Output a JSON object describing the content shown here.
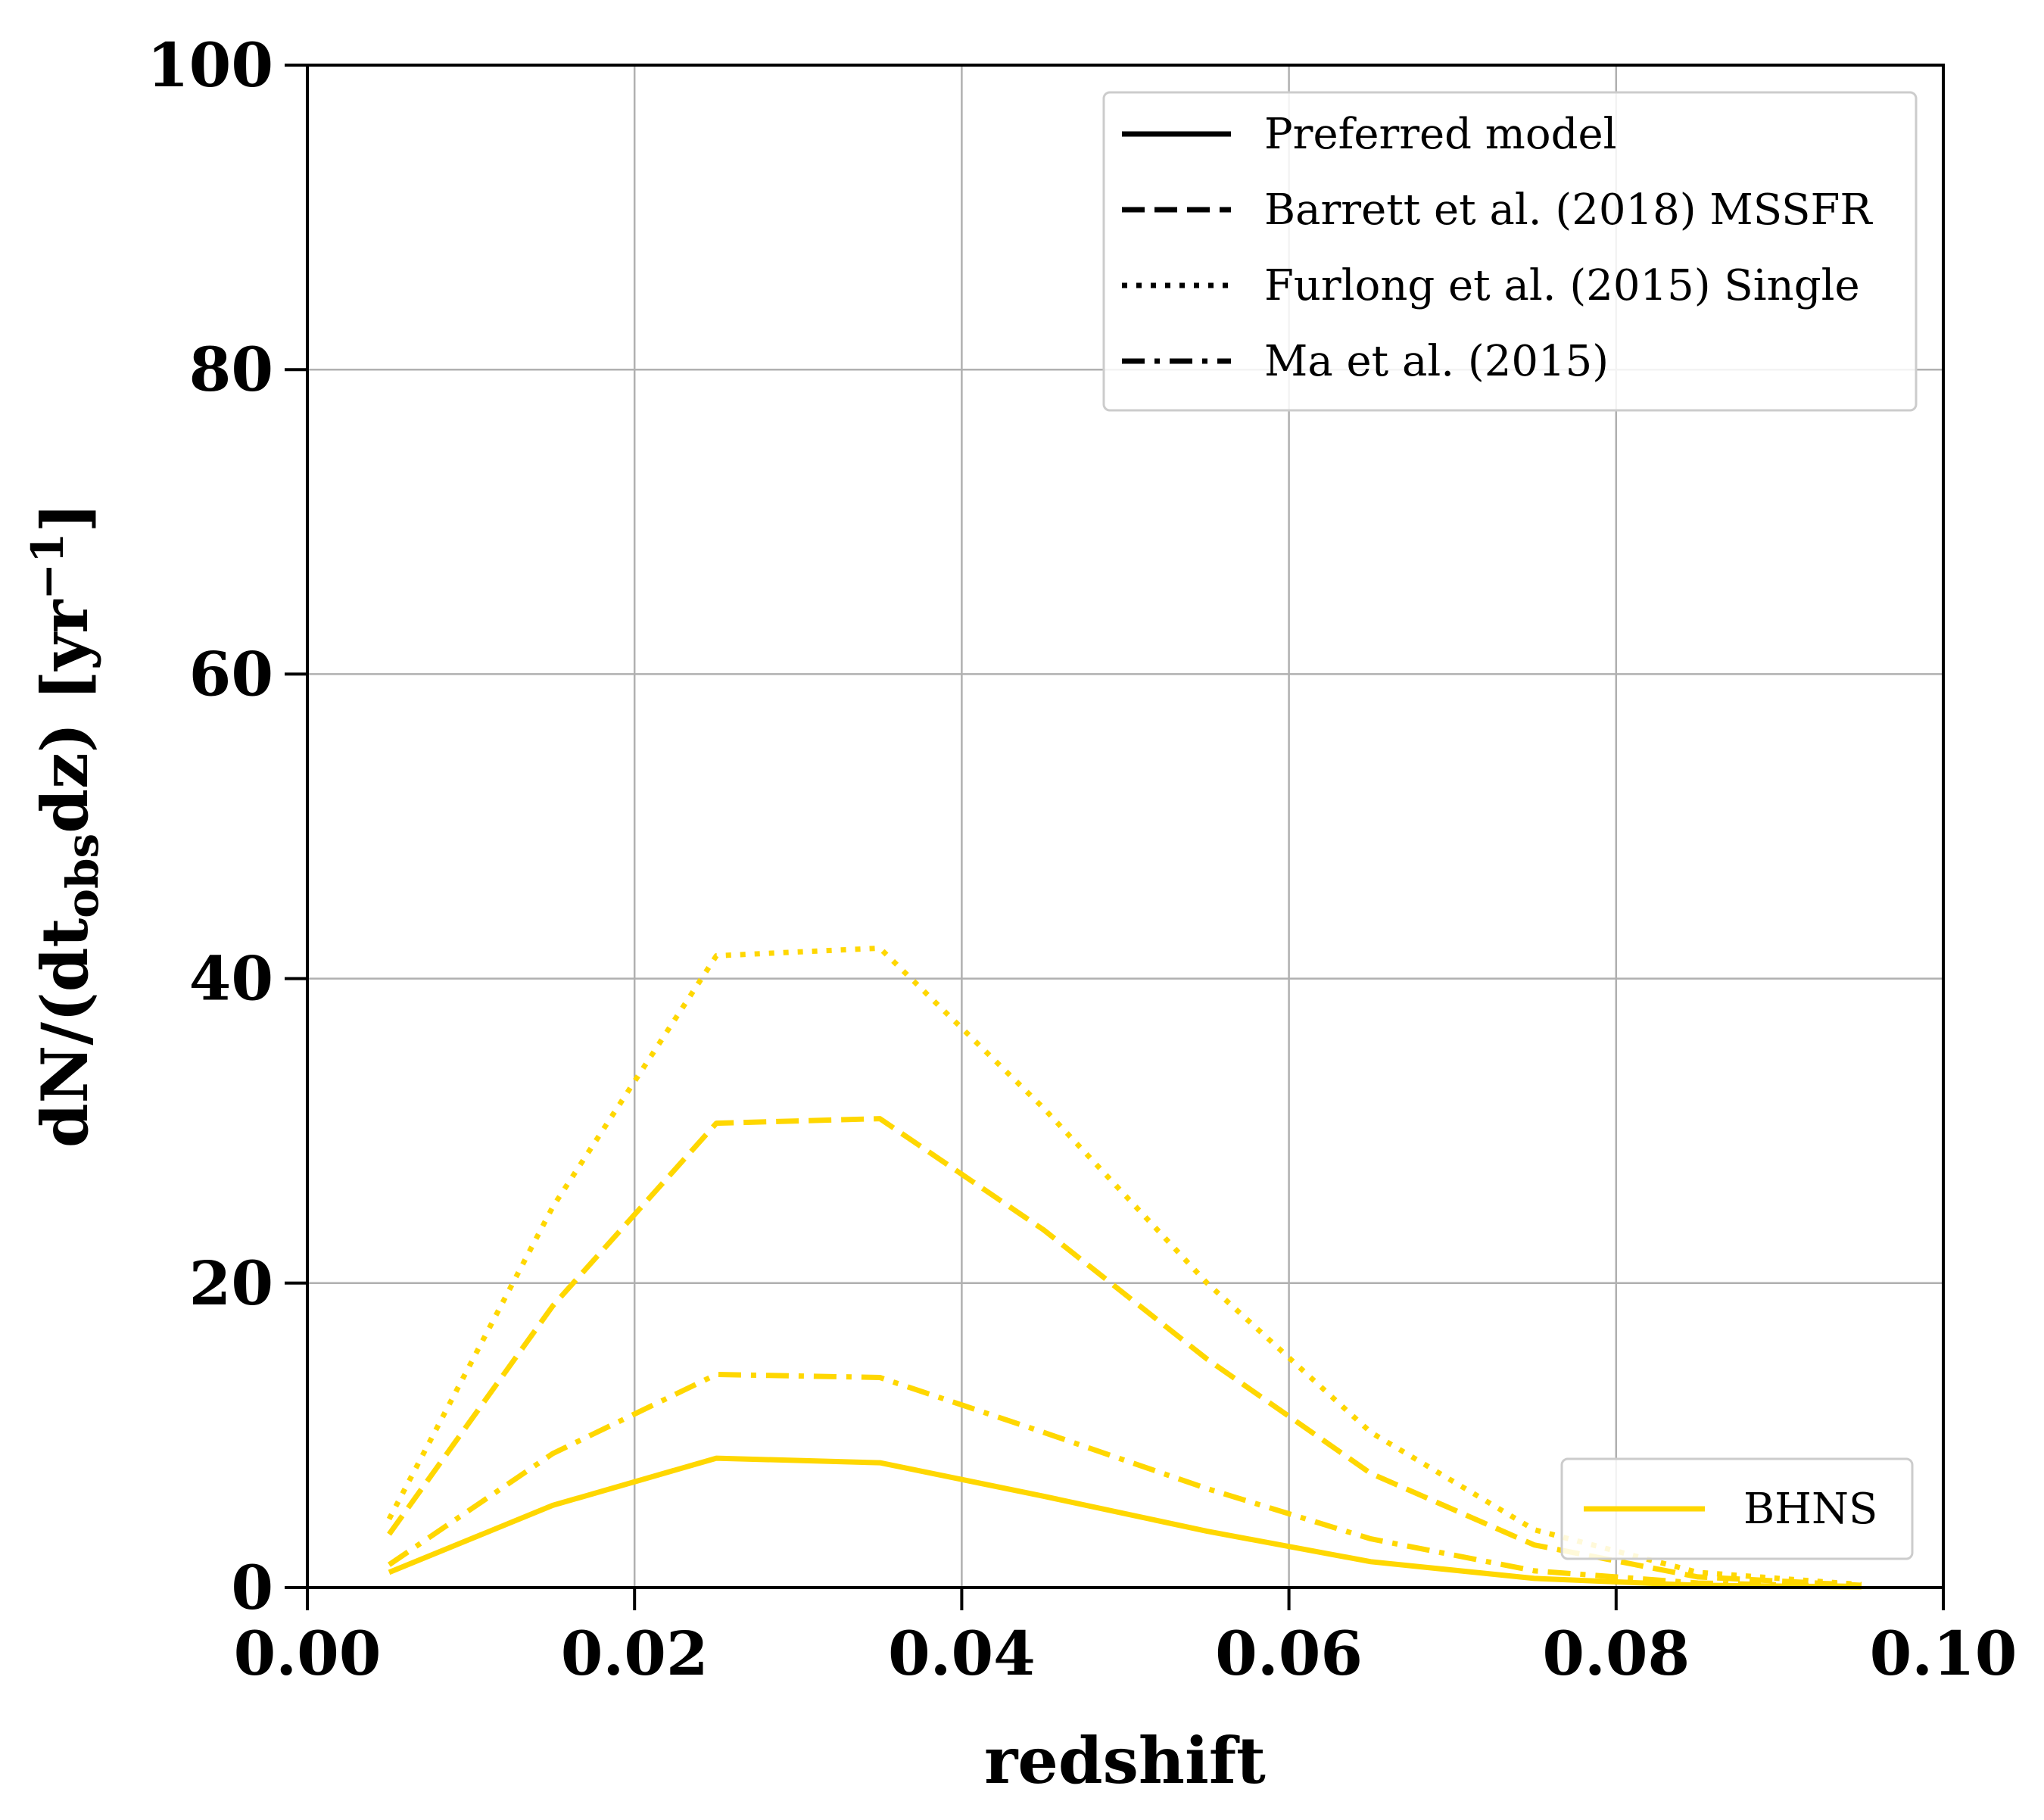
{
  "chart_data": {
    "type": "line",
    "xlabel": "redshift",
    "ylabel": {
      "pre": "dN/(dt",
      "sub": "obs",
      "mid": "dz) [yr",
      "sup": "−1",
      "post": "]"
    },
    "xlim": [
      0.0,
      0.1
    ],
    "ylim": [
      0,
      100
    ],
    "x_ticks": [
      0.0,
      0.02,
      0.04,
      0.06,
      0.08,
      0.1
    ],
    "x_tick_labels": [
      "0.00",
      "0.02",
      "0.04",
      "0.06",
      "0.08",
      "0.10"
    ],
    "y_ticks": [
      0,
      20,
      40,
      60,
      80,
      100
    ],
    "y_tick_labels": [
      "0",
      "20",
      "40",
      "60",
      "80",
      "100"
    ],
    "grid": true,
    "style_legend": {
      "placement": "top-right",
      "items": [
        {
          "label": "Preferred model",
          "dash": "solid"
        },
        {
          "label": "Barrett et al. (2018) MSSFR",
          "dash": "dashed"
        },
        {
          "label": "Furlong et al. (2015) Single",
          "dash": "dotted"
        },
        {
          "label": "Ma et al. (2015)",
          "dash": "dashdot"
        }
      ]
    },
    "type_legend": {
      "placement": "bottom-right",
      "items": [
        {
          "label": "BHNS",
          "color": "#FFD700"
        }
      ]
    },
    "x": [
      0.005,
      0.015,
      0.025,
      0.035,
      0.045,
      0.055,
      0.065,
      0.075,
      0.085,
      0.095
    ],
    "series": [
      {
        "dash": "solid",
        "color": "#FFD700",
        "values": [
          1.0,
          5.4,
          8.5,
          8.2,
          6.0,
          3.7,
          1.7,
          0.6,
          0.15,
          0.05
        ]
      },
      {
        "dash": "dashed",
        "color": "#FFD700",
        "values": [
          3.5,
          18.5,
          30.5,
          30.8,
          23.5,
          15.0,
          7.5,
          2.8,
          0.7,
          0.15
        ]
      },
      {
        "dash": "dotted",
        "color": "#FFD700",
        "values": [
          4.5,
          25.0,
          41.5,
          42.0,
          31.5,
          20.0,
          10.2,
          3.8,
          1.0,
          0.2
        ]
      },
      {
        "dash": "dashdot",
        "color": "#FFD700",
        "values": [
          1.5,
          8.8,
          14.0,
          13.8,
          10.2,
          6.5,
          3.2,
          1.1,
          0.3,
          0.07
        ]
      }
    ]
  }
}
